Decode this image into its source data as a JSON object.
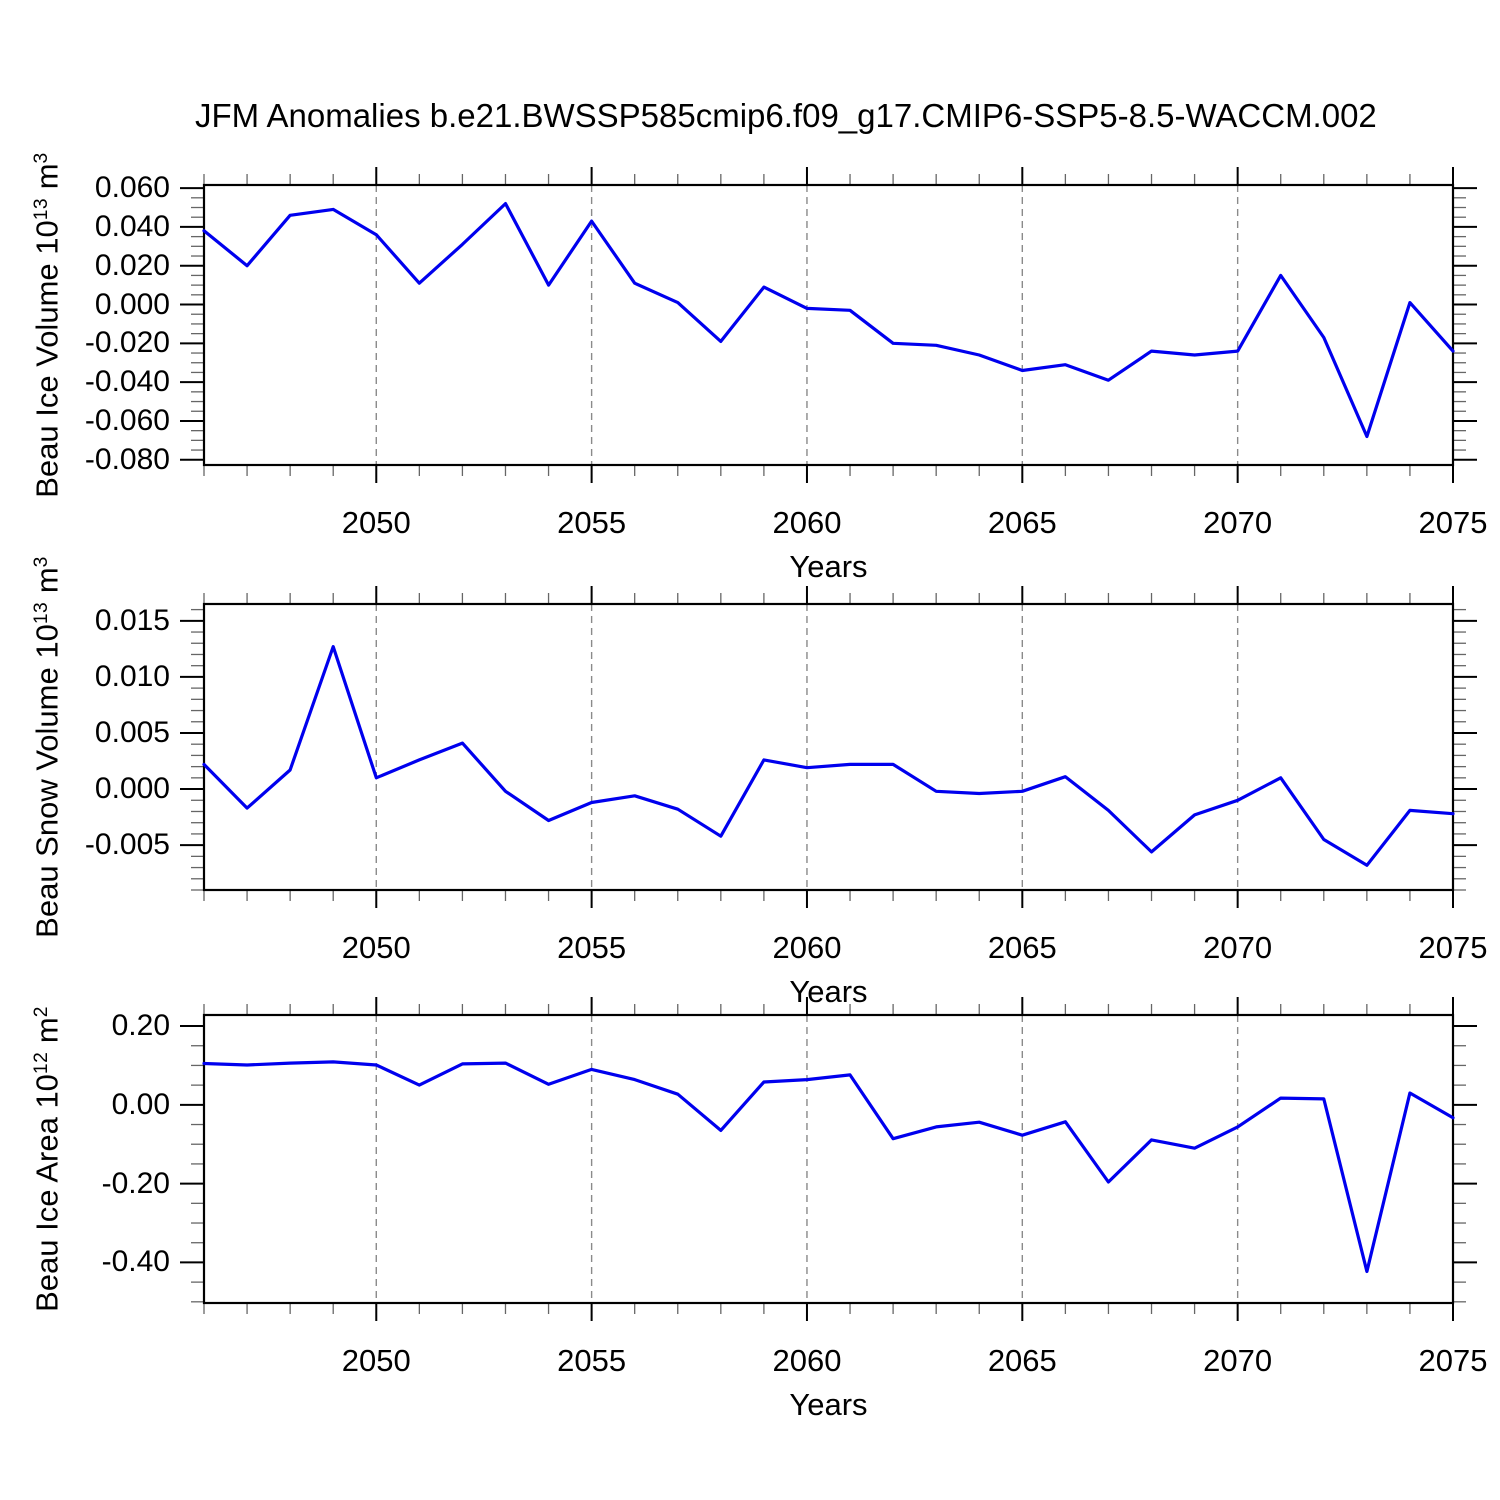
{
  "title": "JFM Anomalies b.e21.BWSSP585cmip6.f09_g17.CMIP6-SSP5-8.5-WACCM.002",
  "colors": {
    "line": "#0000EE",
    "grid": "#8a8a8a",
    "axis": "#000000",
    "major_tick": "#000000",
    "minor_tick": "#666666",
    "text": "#000000",
    "background": "#ffffff"
  },
  "x_axis": {
    "label": "Years",
    "range": [
      2046,
      2075
    ],
    "tick_values": [
      2050,
      2055,
      2060,
      2065,
      2070,
      2075
    ],
    "tick_labels": [
      "2050",
      "2055",
      "2060",
      "2065",
      "2070",
      "2075"
    ],
    "minor_step": 1,
    "gridlines_at": [
      2050,
      2055,
      2060,
      2065,
      2070
    ],
    "grid_style": "dashed"
  },
  "chart_data": [
    {
      "type": "line",
      "name": "beau-ice-volume",
      "ylabel_plain": "Beau Ice Volume 10^13 m^3",
      "ylabel_parts": [
        {
          "t": "Beau Ice Volume 10"
        },
        {
          "s": "13"
        },
        {
          "t": " m"
        },
        {
          "s": "3"
        }
      ],
      "xlabel": "Years",
      "ylim": [
        -0.0827,
        0.0616
      ],
      "ytick_values": [
        0.06,
        0.04,
        0.02,
        0.0,
        -0.02,
        -0.04,
        -0.06,
        -0.08
      ],
      "ytick_labels": [
        "0.060",
        "0.040",
        "0.020",
        "0.000",
        "-0.020",
        "-0.040",
        "-0.060",
        "-0.080"
      ],
      "y_minor_step": 0.005,
      "x": [
        2046,
        2047,
        2048,
        2049,
        2050,
        2051,
        2052,
        2053,
        2054,
        2055,
        2056,
        2057,
        2058,
        2059,
        2060,
        2061,
        2062,
        2063,
        2064,
        2065,
        2066,
        2067,
        2068,
        2069,
        2070,
        2071,
        2072,
        2073,
        2074,
        2075
      ],
      "values": [
        0.038,
        0.02,
        0.046,
        0.049,
        0.036,
        0.011,
        0.031,
        0.052,
        0.01,
        0.043,
        0.011,
        0.001,
        -0.019,
        0.009,
        -0.002,
        -0.003,
        -0.02,
        -0.021,
        -0.026,
        -0.034,
        -0.031,
        -0.039,
        -0.024,
        -0.026,
        -0.024,
        0.015,
        -0.017,
        -0.068,
        0.001,
        -0.024
      ]
    },
    {
      "type": "line",
      "name": "beau-snow-volume",
      "ylabel_plain": "Beau Snow Volume 10^13 m^3",
      "ylabel_parts": [
        {
          "t": "Beau Snow Volume 10"
        },
        {
          "s": "13"
        },
        {
          "t": " m"
        },
        {
          "s": "3"
        }
      ],
      "xlabel": "Years",
      "ylim": [
        -0.009,
        0.0165
      ],
      "ytick_values": [
        0.015,
        0.01,
        0.005,
        0.0,
        -0.005
      ],
      "ytick_labels": [
        "0.015",
        "0.010",
        "0.005",
        "0.000",
        "-0.005"
      ],
      "y_minor_step": 0.001,
      "x": [
        2046,
        2047,
        2048,
        2049,
        2050,
        2051,
        2052,
        2053,
        2054,
        2055,
        2056,
        2057,
        2058,
        2059,
        2060,
        2061,
        2062,
        2063,
        2064,
        2065,
        2066,
        2067,
        2068,
        2069,
        2070,
        2071,
        2072,
        2073,
        2074,
        2075
      ],
      "values": [
        0.0022,
        -0.0017,
        0.0017,
        0.0127,
        0.001,
        0.0026,
        0.0041,
        -0.0002,
        -0.0028,
        -0.0012,
        -0.0006,
        -0.0018,
        -0.0042,
        0.0026,
        0.0019,
        0.0022,
        0.0022,
        -0.0002,
        -0.0004,
        -0.0002,
        0.0011,
        -0.0019,
        -0.0056,
        -0.0023,
        -0.001,
        0.001,
        -0.0045,
        -0.0068,
        -0.0019,
        -0.0022
      ]
    },
    {
      "type": "line",
      "name": "beau-ice-area",
      "ylabel_plain": "Beau Ice Area 10^12 m^2",
      "ylabel_parts": [
        {
          "t": "Beau Ice Area 10"
        },
        {
          "s": "12"
        },
        {
          "t": " m"
        },
        {
          "s": "2"
        }
      ],
      "xlabel": "Years",
      "ylim": [
        -0.503,
        0.228
      ],
      "ytick_values": [
        0.2,
        0.0,
        -0.2,
        -0.4
      ],
      "ytick_labels": [
        "0.20",
        "0.00",
        "-0.20",
        "-0.40"
      ],
      "y_minor_step": 0.05,
      "x": [
        2046,
        2047,
        2048,
        2049,
        2050,
        2051,
        2052,
        2053,
        2054,
        2055,
        2056,
        2057,
        2058,
        2059,
        2060,
        2061,
        2062,
        2063,
        2064,
        2065,
        2066,
        2067,
        2068,
        2069,
        2070,
        2071,
        2072,
        2073,
        2074,
        2075
      ],
      "values": [
        0.105,
        0.101,
        0.106,
        0.109,
        0.101,
        0.05,
        0.104,
        0.106,
        0.052,
        0.09,
        0.064,
        0.027,
        -0.065,
        0.058,
        0.064,
        0.076,
        -0.086,
        -0.056,
        -0.044,
        -0.077,
        -0.043,
        -0.196,
        -0.089,
        -0.11,
        -0.056,
        0.017,
        0.015,
        -0.423,
        0.03,
        -0.033
      ]
    }
  ]
}
